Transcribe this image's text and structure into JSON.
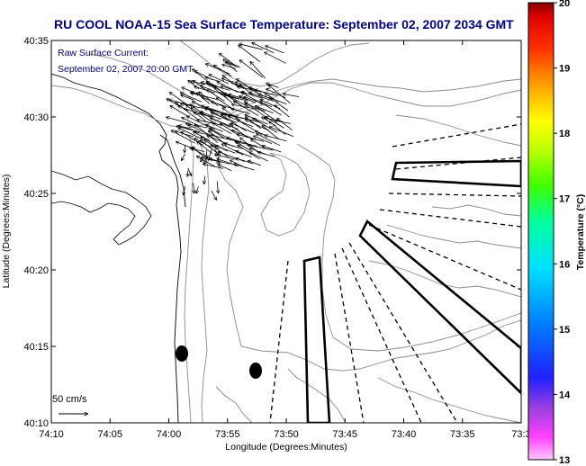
{
  "title": "RU COOL  NOAA-15  Sea Surface Temperature:  September 02, 2007 2034 GMT",
  "overlay": {
    "line1": "Raw Surface Current:",
    "line2": "September 02, 2007 20:00 GMT"
  },
  "scale_label": "50 cm/s",
  "x_axis": {
    "label": "Longitude (Degrees:Minutes)",
    "ticks": [
      "74:10",
      "74:05",
      "74:00",
      "73:55",
      "73:50",
      "73:45",
      "73:40",
      "73:35",
      "73:3"
    ]
  },
  "y_axis": {
    "label": "Latitude (Degrees:Minutes)",
    "ticks": [
      "40:35",
      "40:30",
      "40:25",
      "40:20",
      "40:15",
      "40:10"
    ]
  },
  "colorbar": {
    "label": "Temperature (°C)",
    "min": 13,
    "max": 20,
    "ticks": [
      "20",
      "19",
      "18",
      "17",
      "16",
      "15",
      "14",
      "13"
    ]
  }
}
